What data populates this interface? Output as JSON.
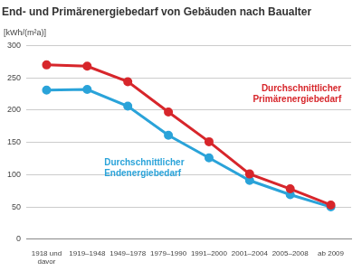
{
  "chart_data": {
    "type": "line",
    "title": "End- und Primärenergiebedarf von Gebäuden nach Baualter",
    "y_label": "[kWh/(m²a)]",
    "categories": [
      "1918 und davor",
      "1919–1948",
      "1949–1978",
      "1979–1990",
      "1991–2000",
      "2001–2004",
      "2005–2008",
      "ab 2009"
    ],
    "series": [
      {
        "name": "Durchschnittlicher Primärenergiebedarf",
        "color": "#d7262b",
        "marker": "circle",
        "line_style": "solid",
        "values": [
          270,
          268,
          244,
          197,
          151,
          101,
          78,
          53
        ]
      },
      {
        "name": "Durchschnittlicher Endenergiebedarf",
        "color": "#2aa3d9",
        "marker": "circle",
        "line_style": "solid",
        "values": [
          231,
          232,
          206,
          161,
          126,
          91,
          69,
          50
        ]
      }
    ],
    "ylim": [
      0,
      300
    ],
    "yticks": [
      0,
      50,
      100,
      150,
      200,
      250,
      300
    ],
    "grid": true
  }
}
